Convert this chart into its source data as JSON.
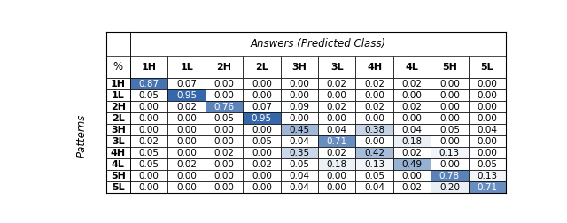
{
  "col_labels": [
    "1H",
    "1L",
    "2H",
    "2L",
    "3H",
    "3L",
    "4H",
    "4L",
    "5H",
    "5L"
  ],
  "row_labels": [
    "1H",
    "1L",
    "2H",
    "2L",
    "3H",
    "3L",
    "4H",
    "4L",
    "5H",
    "5L"
  ],
  "matrix": [
    [
      0.87,
      0.07,
      0.0,
      0.0,
      0.0,
      0.02,
      0.02,
      0.02,
      0.0,
      0.0
    ],
    [
      0.05,
      0.95,
      0.0,
      0.0,
      0.0,
      0.0,
      0.0,
      0.0,
      0.0,
      0.0
    ],
    [
      0.0,
      0.02,
      0.76,
      0.07,
      0.09,
      0.02,
      0.02,
      0.02,
      0.0,
      0.0
    ],
    [
      0.0,
      0.0,
      0.05,
      0.95,
      0.0,
      0.0,
      0.0,
      0.0,
      0.0,
      0.0
    ],
    [
      0.0,
      0.0,
      0.0,
      0.0,
      0.45,
      0.04,
      0.38,
      0.04,
      0.05,
      0.04
    ],
    [
      0.02,
      0.0,
      0.0,
      0.05,
      0.04,
      0.71,
      0.0,
      0.18,
      0.0,
      0.0
    ],
    [
      0.05,
      0.0,
      0.02,
      0.0,
      0.35,
      0.02,
      0.42,
      0.02,
      0.13,
      0.0
    ],
    [
      0.05,
      0.02,
      0.0,
      0.02,
      0.05,
      0.18,
      0.13,
      0.49,
      0.0,
      0.05
    ],
    [
      0.0,
      0.0,
      0.0,
      0.0,
      0.04,
      0.0,
      0.05,
      0.0,
      0.78,
      0.13
    ],
    [
      0.0,
      0.0,
      0.0,
      0.0,
      0.04,
      0.0,
      0.04,
      0.02,
      0.2,
      0.71
    ]
  ],
  "col_header": "Answers (Predicted Class)",
  "row_header": "Patterns",
  "corner_label": "%",
  "bg_color": "#FFFFFF",
  "font_size": 7.5,
  "header_font_size": 8.5,
  "dark_blue": [
    43,
    95,
    165
  ],
  "light_blue": [
    188,
    210,
    232
  ],
  "white": [
    255,
    255,
    255
  ],
  "color_threshold_white_text": 0.55
}
